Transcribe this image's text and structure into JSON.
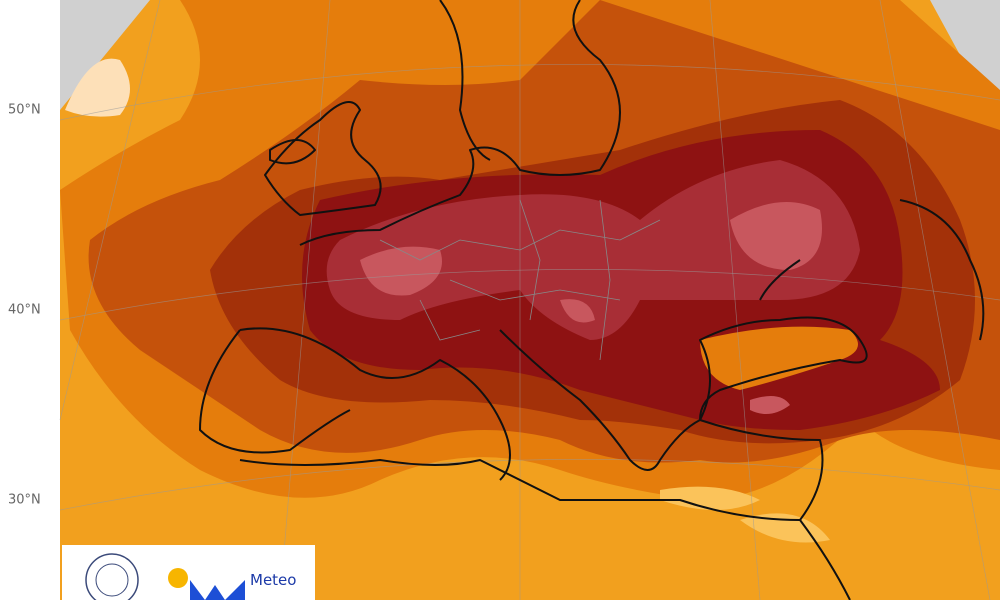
{
  "map": {
    "lat_labels": [
      "50°N",
      "40°N",
      "30°N"
    ],
    "logo": {
      "text": "Meteo"
    }
  }
}
